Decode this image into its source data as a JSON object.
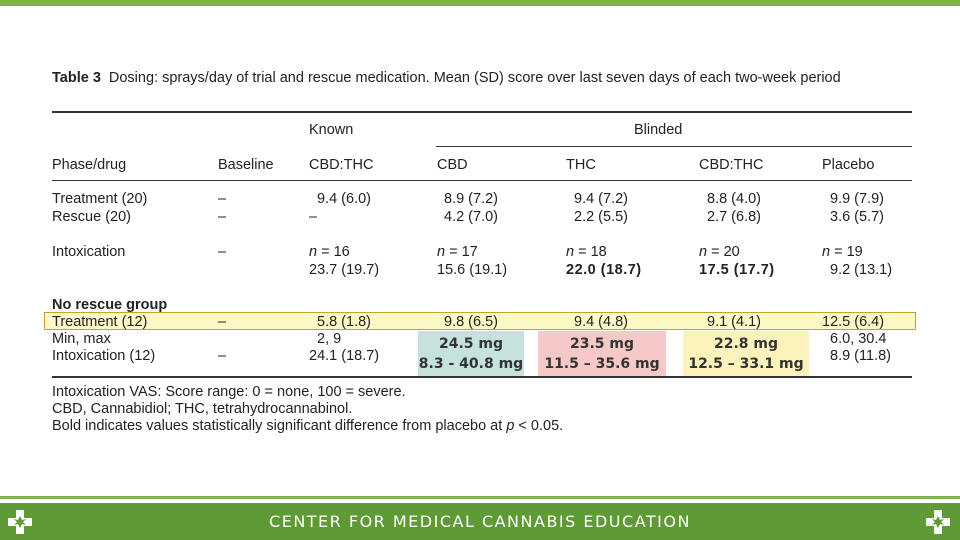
{
  "table": {
    "title_label": "Table 3",
    "title_text": "Dosing: sprays/day of trial and rescue medication. Mean (SD) score over last seven days of each two-week period",
    "header": {
      "known": "Known",
      "blinded": "Blinded",
      "phase_drug": "Phase/drug",
      "baseline": "Baseline",
      "known_cbd_thc": "CBD:THC",
      "cbd": "CBD",
      "thc": "THC",
      "cbd_thc": "CBD:THC",
      "placebo": "Placebo"
    },
    "rows": {
      "treatment": [
        "Treatment (20)",
        "–",
        "9.4 (6.0)",
        "8.9 (7.2)",
        "9.4 (7.2)",
        "8.8 (4.0)",
        "9.9 (7.9)"
      ],
      "rescue": [
        "Rescue (20)",
        "–",
        "–",
        "4.2 (7.0)",
        "2.2 (5.5)",
        "2.7 (6.8)",
        "3.6 (5.7)"
      ],
      "intox_label": "Intoxication",
      "intox_baseline": "–",
      "intox_n_prefix": "n",
      "intox_n": [
        " = 16",
        " = 17",
        " = 18",
        " = 20",
        " = 19"
      ],
      "intox_vals": [
        "23.7 (19.7)",
        "15.6 (19.1)",
        "22.0 (18.7)",
        "17.5 (17.7)",
        "9.2 (13.1)"
      ],
      "no_rescue_group": "No rescue group",
      "nr_treatment": [
        "Treatment (12)",
        "–",
        "5.8 (1.8)",
        "9.8 (6.5)",
        "9.4 (4.8)",
        "9.1 (4.1)",
        "12.5 (6.4)"
      ],
      "minmax_label": "Min, max",
      "minmax_known": "2, 9",
      "minmax_placebo": "6.0, 30.4",
      "nr_intox": [
        "Intoxication (12)",
        "–",
        "24.1 (18.7)",
        "8.9 (11.8)"
      ]
    },
    "callouts": {
      "cbd": {
        "dose": "24.5 mg",
        "range": "8.3 - 40.8 mg"
      },
      "thc": {
        "dose": "23.5 mg",
        "range": "11.5 – 35.6 mg"
      },
      "cbd_thc": {
        "dose": "22.8 mg",
        "range": "12.5 – 33.1 mg"
      }
    },
    "footnotes": {
      "vas": "Intoxication VAS: Score range: 0 = none, 100 = severe.",
      "abbrev": "CBD, Cannabidiol; THC, tetrahydrocannabinol.",
      "bold_prefix": "Bold indicates values statistically significant difference from placebo at ",
      "bold_p": "p",
      "bold_suffix": " < 0.05."
    }
  },
  "footer": {
    "text": "CENTER FOR MEDICAL CANNABIS EDUCATION",
    "logo_icon": "cross-leaf-logo-icon"
  },
  "colors": {
    "green_bar": "#7fb24a",
    "footer_green": "#5f9b35",
    "teal_box": "#c5e2dc",
    "pink_box": "#f5c9c8",
    "yellow_box": "#fbf3bb",
    "row_highlight": "#fdf9c6"
  }
}
